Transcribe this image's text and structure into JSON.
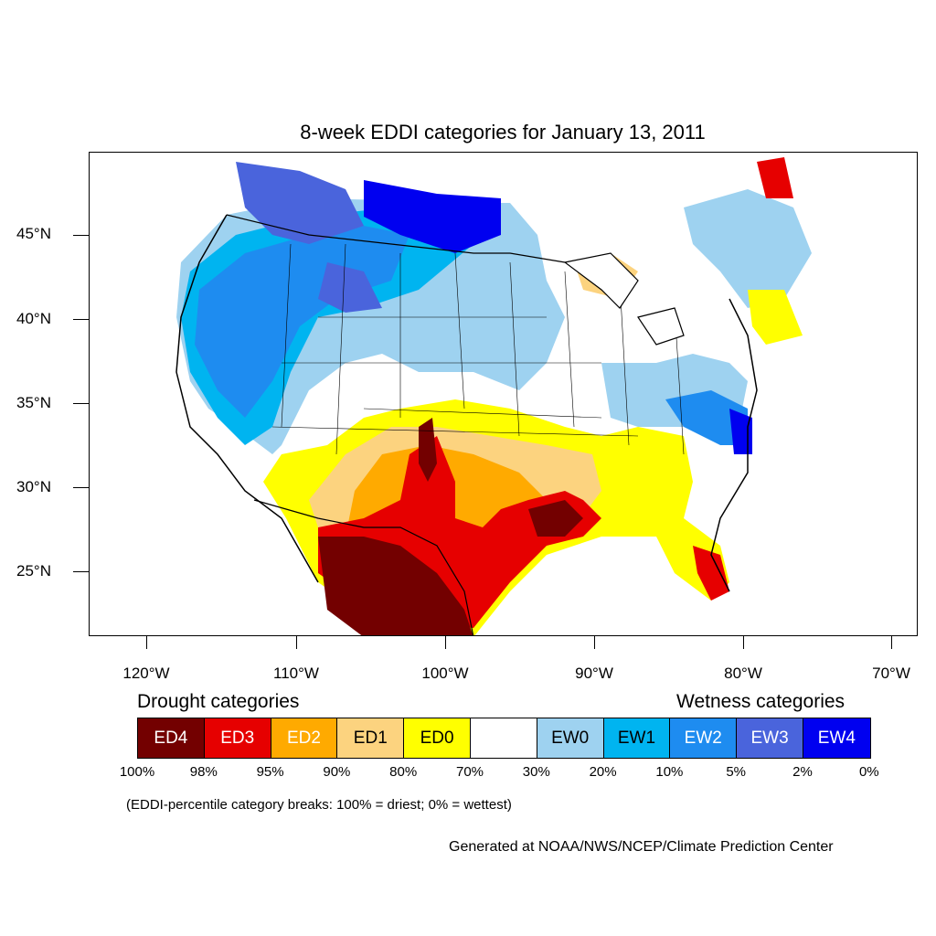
{
  "title": "8-week EDDI categories for January 13, 2011",
  "lat_labels": [
    "45°N",
    "40°N",
    "35°N",
    "30°N",
    "25°N"
  ],
  "lon_labels": [
    "120°W",
    "110°W",
    "100°W",
    "90°W",
    "80°W",
    "70°W"
  ],
  "legend": {
    "drought_heading": "Drought categories",
    "wetness_heading": "Wetness categories",
    "categories": [
      {
        "label": "ED4",
        "color": "#730000",
        "text_color": "#ffffff"
      },
      {
        "label": "ED3",
        "color": "#e60000",
        "text_color": "#ffffff"
      },
      {
        "label": "ED2",
        "color": "#ffaa00",
        "text_color": "#ffffff"
      },
      {
        "label": "ED1",
        "color": "#fcd37f",
        "text_color": "#000000"
      },
      {
        "label": "ED0",
        "color": "#ffff00",
        "text_color": "#000000"
      },
      {
        "label": "",
        "color": "#ffffff",
        "text_color": "#000000"
      },
      {
        "label": "EW0",
        "color": "#9ed2f0",
        "text_color": "#000000"
      },
      {
        "label": "EW1",
        "color": "#00b4f0",
        "text_color": "#000000"
      },
      {
        "label": "EW2",
        "color": "#1e8cf0",
        "text_color": "#ffffff"
      },
      {
        "label": "EW3",
        "color": "#4a64dc",
        "text_color": "#ffffff"
      },
      {
        "label": "EW4",
        "color": "#0000f0",
        "text_color": "#ffffff"
      }
    ],
    "breaks": [
      "100%",
      "98%",
      "95%",
      "90%",
      "80%",
      "70%",
      "30%",
      "20%",
      "10%",
      "5%",
      "2%",
      "0%"
    ]
  },
  "note": "(EDDI-percentile category breaks: 100% = driest; 0% = wettest)",
  "credit": "Generated at NOAA/NWS/NCEP/Climate Prediction Center"
}
